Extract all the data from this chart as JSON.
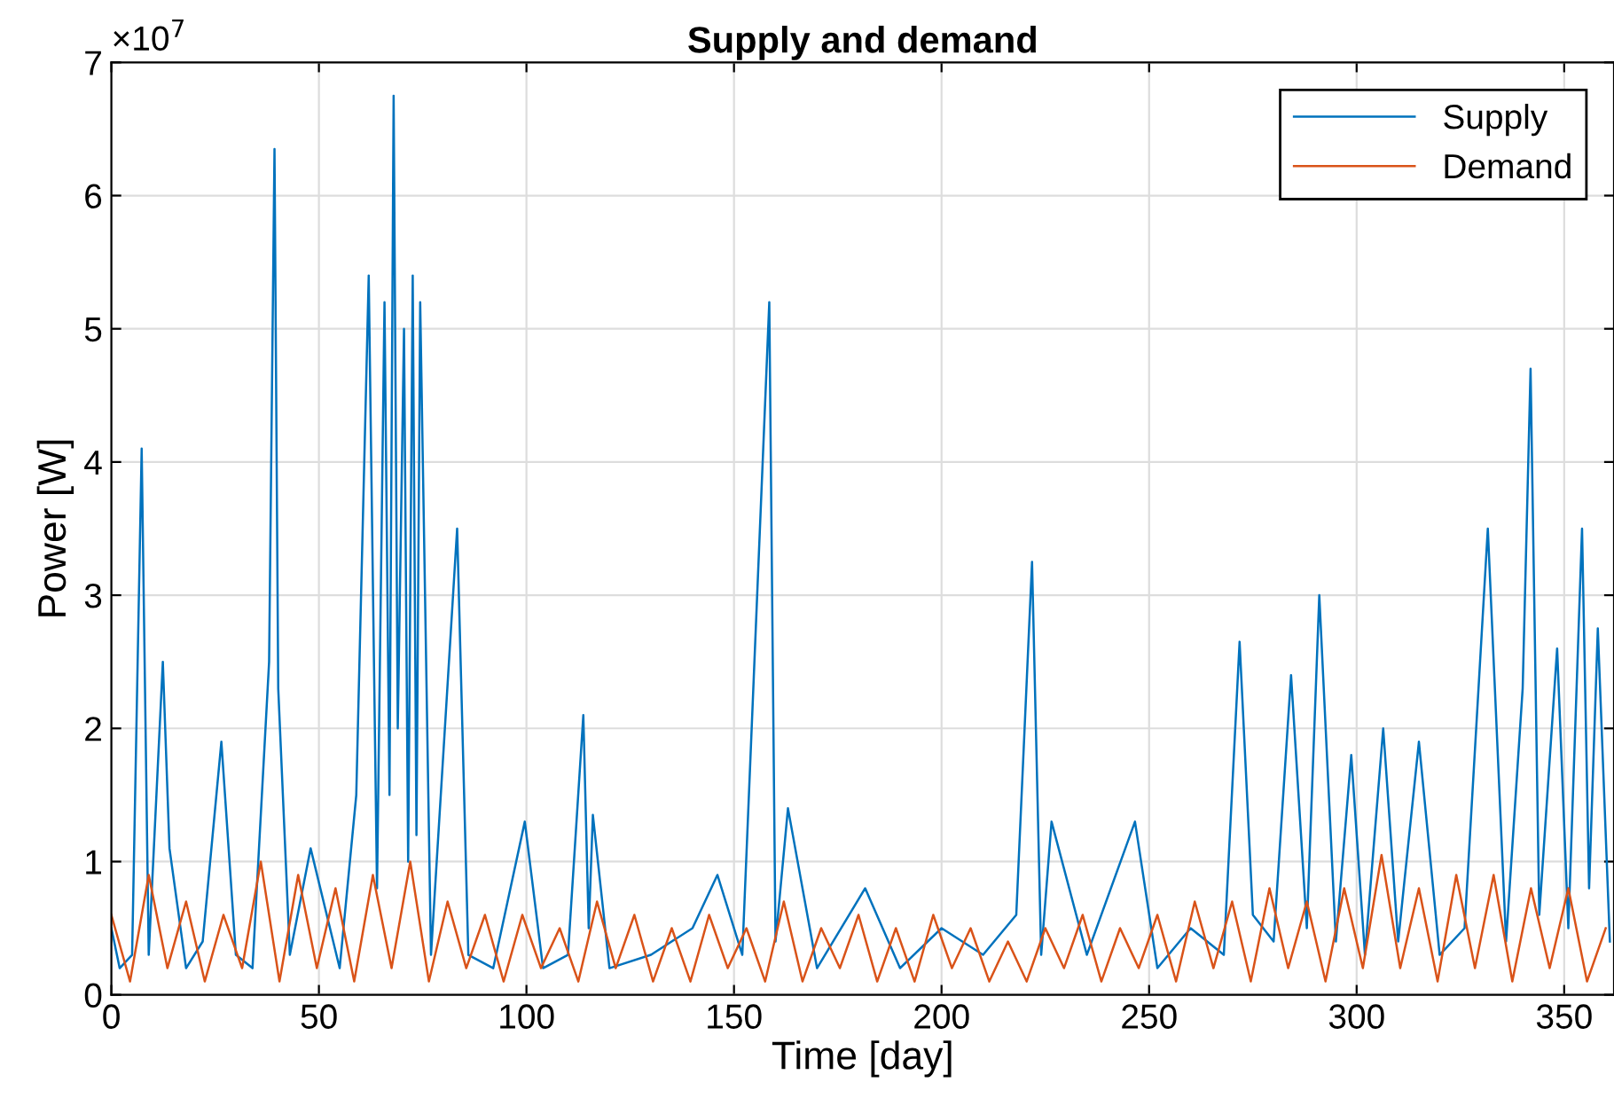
{
  "chart_data": {
    "type": "line",
    "title": "Supply and demand",
    "xlabel": "Time [day]",
    "ylabel": "Power [W]",
    "annotations": [
      "×10$^{7}$"
    ],
    "xlim": [
      0,
      362
    ],
    "xticks": [
      0,
      50,
      100,
      150,
      200,
      250,
      300,
      350
    ],
    "ylim": [
      0,
      7
    ],
    "yticks": [
      0,
      1,
      2,
      3,
      4,
      5,
      6,
      7
    ],
    "grid": true,
    "legend": "top right",
    "series": [
      {
        "name": "Supply",
        "color": "#0072bd",
        "x": [
          0,
          2,
          5,
          7.3,
          9,
          12.4,
          14,
          18,
          22,
          26.5,
          30,
          34,
          38,
          39.3,
          40.2,
          43,
          48,
          55,
          59,
          62,
          64,
          65.8,
          67,
          68,
          69,
          70.5,
          71.5,
          72.6,
          73.5,
          74.4,
          77,
          83.3,
          86,
          92,
          99.6,
          104,
          110,
          113.7,
          115,
          116,
          120,
          130,
          140,
          146,
          152,
          158.5,
          160,
          163,
          170,
          181.6,
          190,
          200,
          210,
          218,
          221.8,
          224,
          226.5,
          235,
          246.6,
          252,
          260,
          268,
          271.8,
          275,
          280,
          284.2,
          288,
          291,
          295,
          298.7,
          302,
          306.4,
          310,
          315,
          320,
          326,
          331.6,
          336,
          340,
          341.9,
          344,
          348.3,
          351,
          354.3,
          356,
          358.1,
          361
        ],
        "values": [
          0.5,
          0.2,
          0.3,
          4.1,
          0.3,
          2.5,
          1.1,
          0.2,
          0.4,
          1.9,
          0.3,
          0.2,
          2.5,
          6.35,
          2.3,
          0.3,
          1.1,
          0.2,
          1.5,
          5.4,
          0.8,
          5.2,
          1.5,
          6.75,
          2.0,
          5.0,
          1.0,
          5.4,
          1.2,
          5.2,
          0.3,
          3.5,
          0.3,
          0.2,
          1.3,
          0.2,
          0.3,
          2.1,
          0.5,
          1.35,
          0.2,
          0.3,
          0.5,
          0.9,
          0.3,
          5.2,
          0.4,
          1.4,
          0.2,
          0.8,
          0.2,
          0.5,
          0.3,
          0.6,
          3.25,
          0.3,
          1.3,
          0.3,
          1.3,
          0.2,
          0.5,
          0.3,
          2.65,
          0.6,
          0.4,
          2.4,
          0.5,
          3.0,
          0.4,
          1.8,
          0.3,
          2.0,
          0.4,
          1.9,
          0.3,
          0.5,
          3.5,
          0.4,
          2.3,
          4.7,
          0.6,
          2.6,
          0.5,
          3.5,
          0.8,
          2.75,
          0.4
        ]
      },
      {
        "name": "Demand",
        "color": "#d95319",
        "x": [
          0,
          4.5,
          9,
          13.5,
          18,
          22.5,
          27,
          31.5,
          36,
          40.5,
          45,
          49.5,
          54,
          58.5,
          63,
          67.5,
          72,
          76.5,
          81,
          85.5,
          90,
          94.5,
          99,
          103.5,
          108,
          112.5,
          117,
          121.5,
          126,
          130.5,
          135,
          139.5,
          144,
          148.5,
          153,
          157.5,
          162,
          166.5,
          171,
          175.5,
          180,
          184.5,
          189,
          193.5,
          198,
          202.5,
          207,
          211.5,
          216,
          220.5,
          225,
          229.5,
          234,
          238.5,
          243,
          247.5,
          252,
          256.5,
          261,
          265.5,
          270,
          274.5,
          279,
          283.5,
          288,
          292.5,
          297,
          301.5,
          306,
          310.5,
          315,
          319.5,
          324,
          328.5,
          333,
          337.5,
          342,
          346.5,
          351,
          355.5,
          360
        ],
        "values": [
          0.6,
          0.1,
          0.9,
          0.2,
          0.7,
          0.1,
          0.6,
          0.2,
          1.0,
          0.1,
          0.9,
          0.2,
          0.8,
          0.1,
          0.9,
          0.2,
          1.0,
          0.1,
          0.7,
          0.2,
          0.6,
          0.1,
          0.6,
          0.2,
          0.5,
          0.1,
          0.7,
          0.2,
          0.6,
          0.1,
          0.5,
          0.1,
          0.6,
          0.2,
          0.5,
          0.1,
          0.7,
          0.1,
          0.5,
          0.2,
          0.6,
          0.1,
          0.5,
          0.1,
          0.6,
          0.2,
          0.5,
          0.1,
          0.4,
          0.1,
          0.5,
          0.2,
          0.6,
          0.1,
          0.5,
          0.2,
          0.6,
          0.1,
          0.7,
          0.2,
          0.7,
          0.1,
          0.8,
          0.2,
          0.7,
          0.1,
          0.8,
          0.2,
          1.05,
          0.2,
          0.8,
          0.1,
          0.9,
          0.2,
          0.9,
          0.1,
          0.8,
          0.2,
          0.8,
          0.1,
          0.5
        ]
      }
    ]
  }
}
